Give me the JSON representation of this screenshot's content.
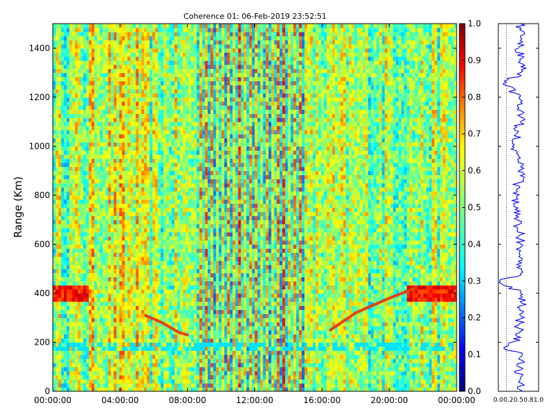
{
  "chart_data": [
    {
      "type": "heatmap",
      "title": "Coherence 01: 06-Feb-2019 23:52:51",
      "xlabel": "",
      "ylabel": "Range (Km)",
      "x_tick_labels": [
        "00:00:00",
        "04:00:00",
        "08:00:00",
        "12:00:00",
        "16:00:00",
        "20:00:00",
        "00:00:00"
      ],
      "xlim_hours": [
        0,
        24
      ],
      "y_ticks": [
        0,
        200,
        400,
        600,
        800,
        1000,
        1200,
        1400
      ],
      "ylim": [
        0,
        1500
      ],
      "colormap": "jet",
      "colorbar": {
        "range": [
          0.0,
          1.0
        ],
        "tick_labels": [
          "0.0",
          "0.1",
          "0.2",
          "0.3",
          "0.4",
          "0.5",
          "0.6",
          "0.7",
          "0.8",
          "0.9",
          "1.0"
        ],
        "position": "right"
      },
      "features": {
        "low_coherence_band_hours": [
          8.5,
          15
        ],
        "high_coherence_band_km": [
          370,
          440
        ],
        "descending_trace": [
          [
            5.5,
            310
          ],
          [
            6.5,
            280
          ],
          [
            7.5,
            240
          ],
          [
            8,
            230
          ]
        ],
        "ascending_trace": [
          [
            16.5,
            250
          ],
          [
            18,
            320
          ],
          [
            20,
            380
          ],
          [
            21.5,
            420
          ]
        ]
      }
    },
    {
      "type": "line",
      "title": "",
      "xlabel": "",
      "ylabel": "",
      "x_tick_labels": [
        "0.0",
        "0.2",
        "0.5",
        "0.8",
        "1.0"
      ],
      "xlim": [
        0,
        1
      ],
      "ylim": [
        0,
        1500
      ],
      "reference_line_x": 0.2,
      "color": "#0000ff",
      "series": [
        {
          "x": [
            0.6,
            0.55,
            0.5,
            0.6,
            0.15,
            0.55,
            0.5,
            0.6,
            0.58,
            0.55,
            0.55,
            0.05,
            0.55,
            0.5,
            0.45,
            0.55,
            0.5,
            0.4,
            0.45,
            0.55,
            0.5,
            0.35,
            0.5,
            0.55,
            0.55,
            0.2,
            0.55,
            0.6,
            0.5,
            0.55,
            0.55
          ],
          "y": [
            0,
            50,
            100,
            150,
            180,
            220,
            270,
            320,
            360,
            390,
            400,
            450,
            480,
            530,
            580,
            620,
            680,
            760,
            820,
            880,
            940,
            1000,
            1060,
            1120,
            1180,
            1260,
            1300,
            1360,
            1400,
            1450,
            1500
          ]
        }
      ]
    }
  ],
  "colors": {
    "jet_stops": [
      "#00007f",
      "#0000ff",
      "#007fff",
      "#00ffff",
      "#7fff7f",
      "#ffff00",
      "#ff7f00",
      "#ff0000",
      "#7f0000"
    ],
    "side_line": "#0000ff"
  }
}
